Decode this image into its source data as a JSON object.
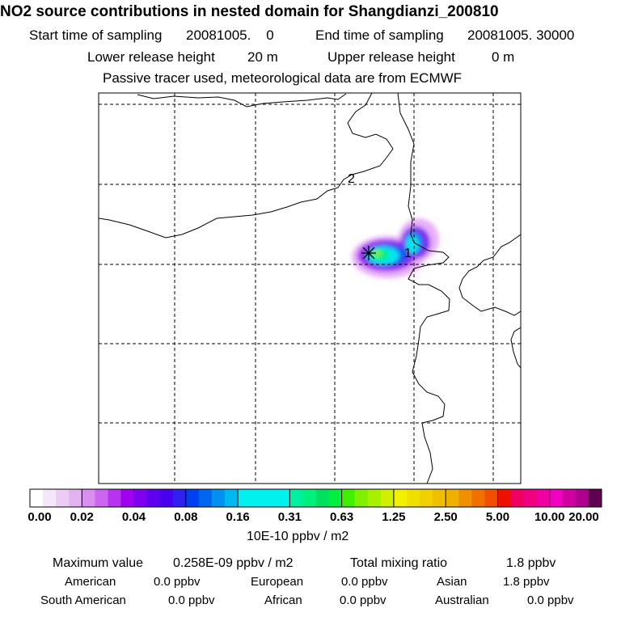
{
  "header": {
    "title": "NO2 source contributions in nested domain for Shangdianzi_200810",
    "start_label": "Start time of sampling",
    "start_value": "20081005.    0",
    "end_label": "End time of sampling",
    "end_value": "20081005. 30000",
    "lower_label": "Lower release height",
    "lower_value": "20 m",
    "upper_label": "Upper release height",
    "upper_value": "0 m",
    "note": "Passive tracer used, meteorological data are from ECMWF"
  },
  "map": {
    "contour_labels": [
      "2",
      "1"
    ],
    "receptor_marker": "asterisk"
  },
  "colorbar": {
    "ticks": [
      "0.00",
      "0.02",
      "0.04",
      "0.08",
      "0.16",
      "0.31",
      "0.63",
      "1.25",
      "2.50",
      "5.00",
      "10.00",
      "20.00"
    ],
    "unit": "10E-10 ppbv / m2",
    "colors": [
      [
        "#ffffff",
        "#f6e6fa",
        "#ecccf5",
        "#e2b3f0"
      ],
      [
        "#d98ff0",
        "#cc66f0",
        "#b633f0",
        "#a000f0"
      ],
      [
        "#8000f0",
        "#6000f0",
        "#4a00f0",
        "#2f20f0"
      ],
      [
        "#0040f0",
        "#0066f0",
        "#0090f0",
        "#00b8f0"
      ],
      [
        "#00f0f0",
        "#00f0f0",
        "#00f0f0",
        "#00f0f0"
      ],
      [
        "#00f0a0",
        "#00f080",
        "#00e060",
        "#00f040"
      ],
      [
        "#40f000",
        "#80f000",
        "#a8f000",
        "#d0f000"
      ],
      [
        "#f0f000",
        "#f0e000",
        "#f0d000",
        "#f0c000"
      ],
      [
        "#f0b000",
        "#f09000",
        "#f07000",
        "#f05000"
      ],
      [
        "#f01000",
        "#f00060",
        "#f00080",
        "#f000a0"
      ],
      [
        "#f000c0",
        "#d000a0",
        "#b00090",
        "#600050"
      ]
    ]
  },
  "footer": {
    "max_label": "Maximum value",
    "max_value": "0.258E-09 ppbv / m2",
    "total_label": "Total mixing ratio",
    "total_value": "1.8 ppbv",
    "regions": [
      {
        "name": "American",
        "value": "0.0 ppbv"
      },
      {
        "name": "European",
        "value": "0.0 ppbv"
      },
      {
        "name": "Asian",
        "value": "1.8 ppbv"
      },
      {
        "name": "South American",
        "value": "0.0 ppbv"
      },
      {
        "name": "African",
        "value": "0.0 ppbv"
      },
      {
        "name": "Australian",
        "value": "0.0 ppbv"
      }
    ]
  }
}
